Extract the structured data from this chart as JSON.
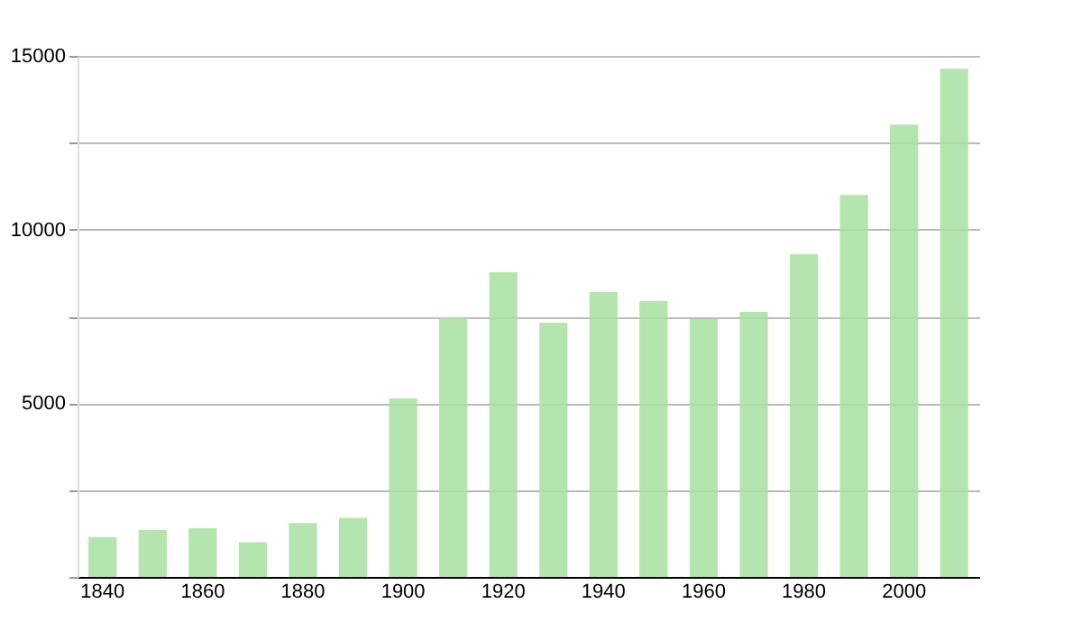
{
  "chart_data": {
    "type": "bar",
    "categories": [
      "1840",
      null,
      "1860",
      null,
      "1880",
      null,
      "1900",
      null,
      "1920",
      null,
      "1940",
      null,
      "1960",
      null,
      "1980",
      null,
      "2000",
      null
    ],
    "values": [
      1150,
      1350,
      1400,
      1000,
      1550,
      1700,
      5140,
      7470,
      8770,
      7320,
      8200,
      7940,
      7420,
      7630,
      9290,
      11000,
      13020,
      14630
    ],
    "color": "#a8e0a0",
    "ylim": [
      0,
      15000
    ],
    "yticks": [
      {
        "value": 0,
        "label": null
      },
      {
        "value": 2500,
        "label": null
      },
      5000,
      {
        "value": 7500,
        "label": null
      },
      10000,
      {
        "value": 12500,
        "label": null
      },
      15000
    ],
    "grid": "y"
  }
}
